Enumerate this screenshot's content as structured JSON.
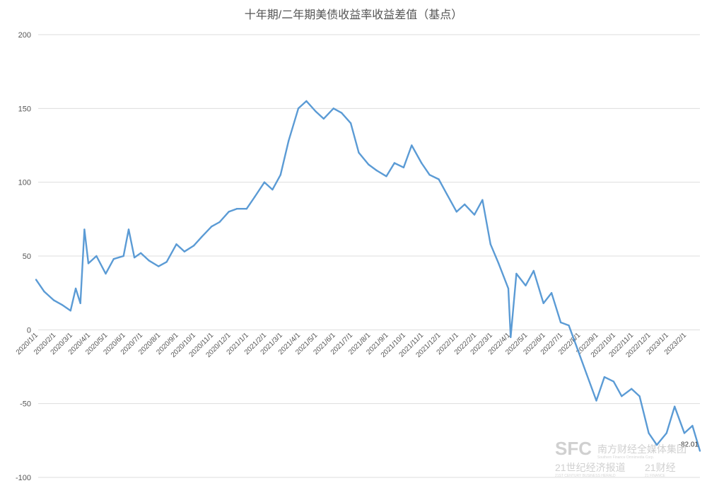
{
  "chart_data": {
    "type": "line",
    "title": "十年期/二年期美债收益率收益差值（基点）",
    "xlabel": "",
    "ylabel": "",
    "ylim": [
      -100,
      200
    ],
    "yticks": [
      200,
      150,
      100,
      50,
      0,
      -50,
      -100
    ],
    "grid": true,
    "x_tick_labels": [
      "2020/1/1",
      "2020/2/1",
      "2020/3/1",
      "2020/4/1",
      "2020/5/1",
      "2020/6/1",
      "2020/7/1",
      "2020/8/1",
      "2020/9/1",
      "2020/10/1",
      "2020/11/1",
      "2020/12/1",
      "2021/1/1",
      "2021/2/1",
      "2021/3/1",
      "2021/4/1",
      "2021/5/1",
      "2021/6/1",
      "2021/7/1",
      "2021/8/1",
      "2021/9/1",
      "2021/10/1",
      "2021/11/1",
      "2021/12/1",
      "2022/1/1",
      "2022/2/1",
      "2022/3/1",
      "2022/4/1",
      "2022/5/1",
      "2022/6/1",
      "2022/7/1",
      "2022/8/1",
      "2022/9/1",
      "2022/10/1",
      "2022/11/1",
      "2022/12/1",
      "2023/1/1",
      "2023/2/1"
    ],
    "end_label": "-82.01",
    "series": [
      {
        "color": "#5b9bd5",
        "x": [
          "2020/1/1",
          "2020/1/15",
          "2020/2/1",
          "2020/2/15",
          "2020/3/1",
          "2020/3/10",
          "2020/3/18",
          "2020/3/25",
          "2020/4/1",
          "2020/4/15",
          "2020/5/1",
          "2020/5/15",
          "2020/6/1",
          "2020/6/10",
          "2020/6/20",
          "2020/7/1",
          "2020/7/15",
          "2020/8/1",
          "2020/8/15",
          "2020/9/1",
          "2020/9/15",
          "2020/10/1",
          "2020/10/15",
          "2020/11/1",
          "2020/11/15",
          "2020/12/1",
          "2020/12/15",
          "2021/1/1",
          "2021/1/15",
          "2021/2/1",
          "2021/2/15",
          "2021/3/1",
          "2021/3/15",
          "2021/4/1",
          "2021/4/15",
          "2021/5/1",
          "2021/5/15",
          "2021/6/1",
          "2021/6/15",
          "2021/7/1",
          "2021/7/15",
          "2021/8/1",
          "2021/8/15",
          "2021/9/1",
          "2021/9/15",
          "2021/10/1",
          "2021/10/15",
          "2021/11/1",
          "2021/11/15",
          "2021/12/1",
          "2021/12/15",
          "2022/1/1",
          "2022/1/15",
          "2022/2/1",
          "2022/2/15",
          "2022/3/1",
          "2022/3/15",
          "2022/4/1",
          "2022/4/5",
          "2022/4/15",
          "2022/5/1",
          "2022/5/15",
          "2022/6/1",
          "2022/6/15",
          "2022/7/1",
          "2022/7/15",
          "2022/8/1",
          "2022/8/15",
          "2022/9/1",
          "2022/9/15",
          "2022/10/1",
          "2022/10/15",
          "2022/11/1",
          "2022/11/15",
          "2022/12/1",
          "2022/12/15",
          "2023/1/1",
          "2023/1/15",
          "2023/2/1",
          "2023/2/15",
          "2023/2/28"
        ],
        "y": [
          34,
          26,
          20,
          17,
          13,
          28,
          18,
          68,
          45,
          50,
          38,
          48,
          50,
          68,
          49,
          52,
          47,
          43,
          46,
          58,
          53,
          57,
          63,
          70,
          73,
          80,
          82,
          82,
          90,
          100,
          95,
          105,
          128,
          150,
          155,
          148,
          143,
          150,
          147,
          140,
          120,
          112,
          108,
          104,
          113,
          110,
          125,
          113,
          105,
          102,
          92,
          80,
          85,
          78,
          88,
          58,
          45,
          28,
          -5,
          38,
          30,
          40,
          18,
          25,
          5,
          3,
          -15,
          -30,
          -48,
          -32,
          -35,
          -45,
          -40,
          -45,
          -70,
          -78,
          -70,
          -52,
          -70,
          -65,
          -82.01
        ]
      }
    ]
  },
  "watermark": {
    "logo_text": "SFC",
    "group_name": "南方财经全媒体集团",
    "group_name_en": "Southern Finance Omnimedia Corp.",
    "brand_1": "21世纪经济报道",
    "brand_1_en": "21ST CENTURY BUSINESS HERALD",
    "brand_2": "21财经",
    "brand_2_en": "21 FINANCE"
  }
}
